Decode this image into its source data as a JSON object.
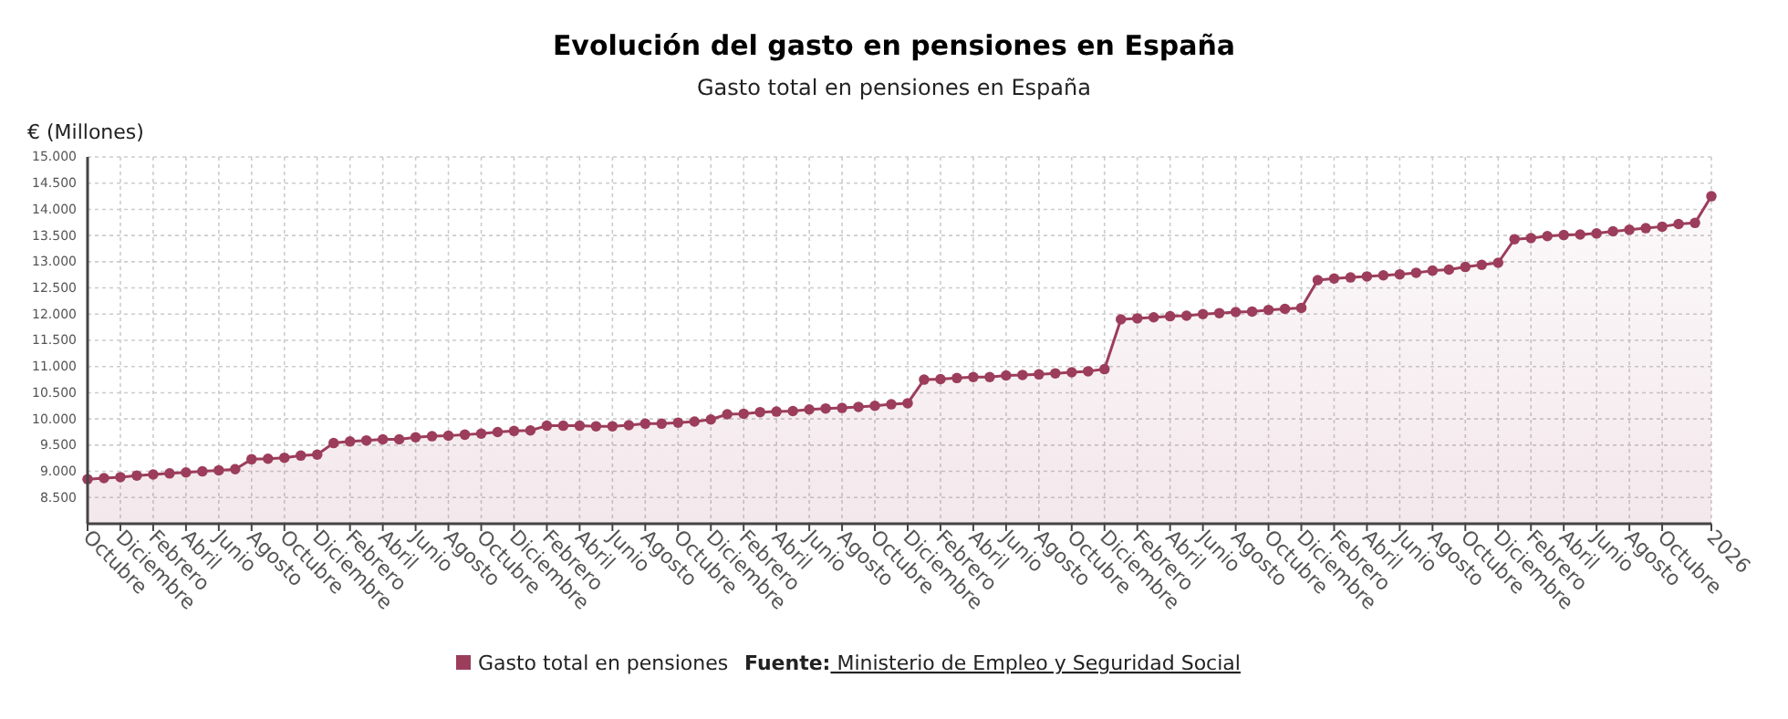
{
  "chart_data": {
    "type": "area",
    "title": "Evolución del gasto en pensiones en España",
    "subtitle": "Gasto total en pensiones en España",
    "ylabel": "€ (Millones)",
    "categories": [
      "Octubre",
      null,
      "Diciembre",
      null,
      "Febrero",
      null,
      "Abril",
      null,
      "Junio",
      null,
      "Agosto",
      null,
      "Octubre",
      null,
      "Diciembre",
      null,
      "Febrero",
      null,
      "Abril",
      null,
      "Junio",
      null,
      "Agosto",
      null,
      "Octubre",
      null,
      "Diciembre",
      null,
      "Febrero",
      null,
      "Abril",
      null,
      "Junio",
      null,
      "Agosto",
      null,
      "Octubre",
      null,
      "Diciembre",
      null,
      "Febrero",
      null,
      "Abril",
      null,
      "Junio",
      null,
      "Agosto",
      null,
      "Octubre",
      null,
      "Diciembre",
      null,
      "Febrero",
      null,
      "Abril",
      null,
      "Junio",
      null,
      "Agosto",
      null,
      "Octubre",
      null,
      "Diciembre",
      null,
      "Febrero",
      null,
      "Abril",
      null,
      "Junio",
      null,
      "Agosto",
      null,
      "Octubre",
      null,
      "Diciembre",
      null,
      "Febrero",
      null,
      "Abril",
      null,
      "Junio",
      null,
      "Agosto",
      null,
      "Octubre",
      null,
      "Diciembre",
      null,
      "Febrero",
      null,
      "Abril",
      null,
      "Junio",
      null,
      "Agosto",
      null,
      "Octubre",
      null,
      null,
      "2026"
    ],
    "series": [
      {
        "name": "Gasto total en pensiones",
        "color": "#9c3d5c",
        "values": [
          8850,
          8870,
          8890,
          8920,
          8940,
          8960,
          8980,
          9000,
          9020,
          9040,
          9230,
          9240,
          9260,
          9300,
          9320,
          9540,
          9570,
          9590,
          9610,
          9610,
          9650,
          9670,
          9680,
          9700,
          9720,
          9750,
          9770,
          9780,
          9870,
          9870,
          9870,
          9860,
          9860,
          9880,
          9910,
          9910,
          9930,
          9950,
          9990,
          10090,
          10100,
          10130,
          10140,
          10150,
          10180,
          10200,
          10210,
          10230,
          10250,
          10280,
          10300,
          10750,
          10760,
          10780,
          10800,
          10800,
          10830,
          10840,
          10850,
          10870,
          10890,
          10910,
          10950,
          11900,
          11920,
          11940,
          11960,
          11970,
          12000,
          12020,
          12040,
          12050,
          12080,
          12100,
          12120,
          12650,
          12680,
          12700,
          12720,
          12740,
          12760,
          12790,
          12830,
          12850,
          12900,
          12940,
          12980,
          13430,
          13450,
          13490,
          13510,
          13520,
          13540,
          13580,
          13610,
          13640,
          13670,
          13720,
          13740,
          14250
        ]
      }
    ],
    "ylim": [
      8000,
      15000
    ],
    "yticks": [
      {
        "value": 8500,
        "label": "8.500"
      },
      {
        "value": 9000,
        "label": "9.000"
      },
      {
        "value": 9500,
        "label": "9.500"
      },
      {
        "value": 10000,
        "label": "10.000"
      },
      {
        "value": 10500,
        "label": "10.500"
      },
      {
        "value": 11000,
        "label": "11.000"
      },
      {
        "value": 11500,
        "label": "11.500"
      },
      {
        "value": 12000,
        "label": "12.000"
      },
      {
        "value": 12500,
        "label": "12.500"
      },
      {
        "value": 13000,
        "label": "13.000"
      },
      {
        "value": 13500,
        "label": "13.500"
      },
      {
        "value": 14000,
        "label": "14.000"
      },
      {
        "value": 14500,
        "label": "14.500"
      },
      {
        "value": 15000,
        "label": "15.000"
      }
    ],
    "grid": true,
    "marker": "circle",
    "legend": "bottom",
    "annotations": [
      "Fuente: Ministerio de Empleo y Seguridad Social"
    ]
  }
}
